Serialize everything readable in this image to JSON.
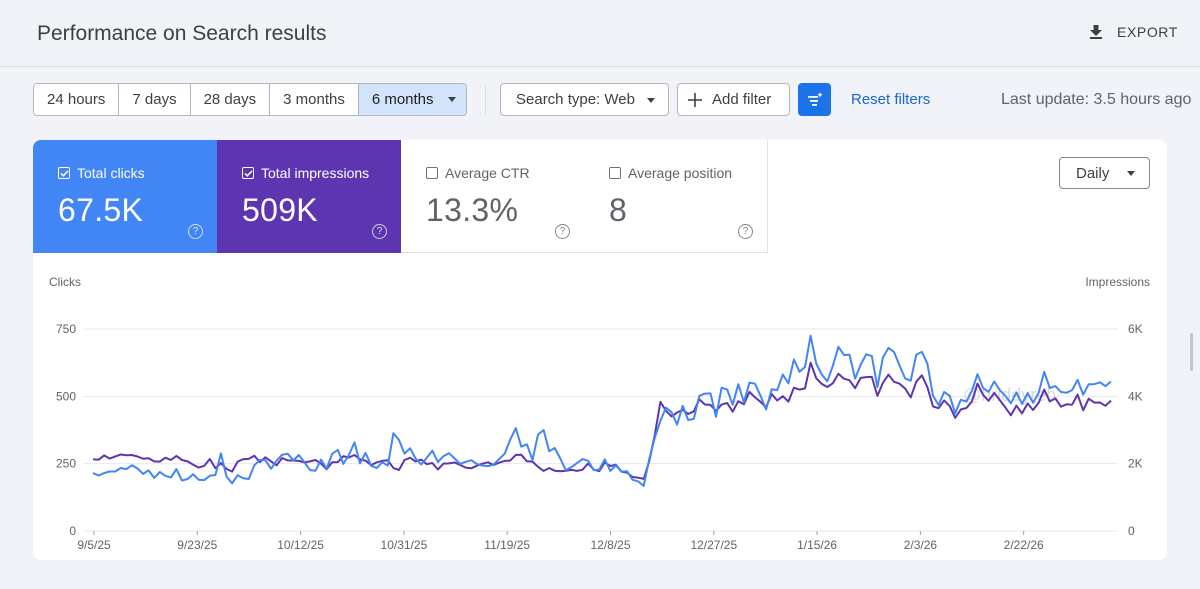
{
  "header": {
    "title": "Performance on Search results",
    "export_label": "EXPORT"
  },
  "toolbar": {
    "ranges": [
      "24 hours",
      "7 days",
      "28 days",
      "3 months",
      "6 months"
    ],
    "active_range": "6 months",
    "search_type_label": "Search type: Web",
    "add_filter_label": "Add filter",
    "reset_filters_label": "Reset filters",
    "last_update": "Last update: 3.5 hours ago"
  },
  "metrics": {
    "clicks": {
      "label": "Total clicks",
      "value": "67.5K",
      "checked": true,
      "color": "#4285f4"
    },
    "impressions": {
      "label": "Total impressions",
      "value": "509K",
      "checked": true,
      "color": "#5e35b1"
    },
    "ctr": {
      "label": "Average CTR",
      "value": "13.3%",
      "checked": false
    },
    "position": {
      "label": "Average position",
      "value": "8",
      "checked": false
    }
  },
  "granularity": "Daily",
  "watermark": "@hriddyreh",
  "chart_data": {
    "type": "line",
    "left_axis_label": "Clicks",
    "right_axis_label": "Impressions",
    "left_ticks": [
      "750",
      "500",
      "250",
      "0"
    ],
    "right_ticks": [
      "6K",
      "4K",
      "2K",
      "0"
    ],
    "left_ylim": [
      0,
      750
    ],
    "right_ylim": [
      0,
      6000
    ],
    "x_ticks": [
      "9/5/25",
      "9/23/25",
      "10/12/25",
      "10/31/25",
      "11/19/25",
      "12/8/25",
      "12/27/25",
      "1/15/26",
      "2/3/26",
      "2/22/26"
    ],
    "series": [
      {
        "name": "Clicks",
        "axis": "left",
        "color": "#4285f4",
        "values": [
          215,
          206,
          215,
          221,
          221,
          234,
          230,
          244,
          232,
          212,
          225,
          197,
          219,
          205,
          199,
          230,
          187,
          193,
          211,
          190,
          189,
          205,
          208,
          288,
          202,
          177,
          207,
          196,
          193,
          244,
          264,
          263,
          231,
          261,
          283,
          287,
          262,
          282,
          255,
          226,
          224,
          265,
          231,
          287,
          301,
          249,
          282,
          329,
          251,
          290,
          242,
          234,
          255,
          243,
          363,
          338,
          287,
          307,
          269,
          247,
          272,
          298,
          256,
          278,
          289,
          269,
          249,
          257,
          263,
          249,
          243,
          241,
          246,
          267,
          287,
          339,
          382,
          313,
          322,
          264,
          358,
          375,
          296,
          308,
          269,
          226,
          237,
          252,
          267,
          261,
          226,
          228,
          266,
          223,
          244,
          220,
          222,
          190,
          184,
          167,
          268,
          346,
          409,
          458,
          441,
          395,
          465,
          412,
          416,
          502,
          510,
          511,
          424,
          532,
          525,
          469,
          545,
          478,
          551,
          547,
          502,
          451,
          526,
          523,
          581,
          548,
          637,
          591,
          609,
          725,
          622,
          581,
          556,
          614,
          684,
          653,
          655,
          566,
          618,
          656,
          650,
          534,
          644,
          680,
          665,
          614,
          566,
          558,
          655,
          665,
          621,
          502,
          468,
          516,
          502,
          437,
          487,
          481,
          520,
          582,
          531,
          517,
          555,
          523,
          502,
          474,
          514,
          472,
          512,
          476,
          514,
          591,
          531,
          538,
          516,
          513,
          523,
          561,
          506,
          545,
          545,
          552,
          538,
          555
        ]
      },
      {
        "name": "Impressions",
        "axis": "right",
        "color": "#5e35b1",
        "values": [
          2130,
          2118,
          2245,
          2151,
          2217,
          2271,
          2249,
          2256,
          2214,
          2147,
          2160,
          2066,
          2061,
          2178,
          2112,
          2229,
          2110,
          2066,
          1968,
          1883,
          1938,
          2140,
          1867,
          2016,
          1844,
          1765,
          2059,
          2136,
          2143,
          2238,
          2046,
          2190,
          2070,
          1952,
          2166,
          2094,
          2095,
          2083,
          2037,
          2068,
          2108,
          2003,
          1832,
          2045,
          2048,
          2221,
          2183,
          2258,
          2128,
          2087,
          1958,
          2040,
          2083,
          2099,
          1867,
          1812,
          2108,
          2174,
          2064,
          2121,
          1984,
          2020,
          1827,
          2001,
          2008,
          2035,
          1962,
          1884,
          1862,
          1940,
          1998,
          2042,
          1959,
          2028,
          2081,
          2092,
          2261,
          2264,
          2070,
          2061,
          1907,
          1786,
          1869,
          1791,
          1775,
          1792,
          1816,
          1784,
          1820,
          2006,
          1825,
          1776,
          2039,
          1931,
          1969,
          1763,
          1736,
          1604,
          1584,
          1547,
          2083,
          2858,
          3834,
          3569,
          3403,
          3520,
          3596,
          3479,
          3553,
          3911,
          3757,
          3745,
          3568,
          3754,
          3802,
          3544,
          3855,
          3763,
          4131,
          3969,
          3838,
          3671,
          4068,
          3875,
          4005,
          3844,
          4255,
          4199,
          4236,
          5003,
          4538,
          4368,
          4276,
          4391,
          4673,
          4524,
          4476,
          4241,
          4549,
          4570,
          4576,
          4014,
          4399,
          4645,
          4431,
          4375,
          4229,
          3968,
          4434,
          4626,
          4271,
          3702,
          3648,
          3879,
          3711,
          3363,
          3608,
          3654,
          3847,
          4379,
          4043,
          3867,
          4101,
          3892,
          3671,
          3436,
          3726,
          3494,
          3786,
          3593,
          3811,
          4202,
          3850,
          3942,
          3693,
          3764,
          3751,
          4052,
          3586,
          3931,
          3814,
          3817,
          3718,
          3872
        ]
      }
    ]
  }
}
